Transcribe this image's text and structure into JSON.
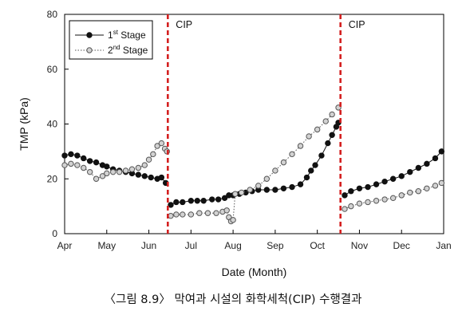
{
  "caption": "〈그림 8.9〉 막여과 시설의 화학세척(CIP) 수행결과",
  "chart_data": {
    "type": "scatter",
    "xlabel": "Date (Month)",
    "ylabel": "TMP (kPa)",
    "ylim": [
      0,
      80
    ],
    "yticks": [
      0,
      20,
      40,
      60,
      80
    ],
    "xlim": [
      "Apr",
      "Jan"
    ],
    "month_ticks": [
      "Apr",
      "May",
      "Jun",
      "Jul",
      "Aug",
      "Sep",
      "Oct",
      "Nov",
      "Dec",
      "Jan"
    ],
    "grid": false,
    "legend_position": "top-left",
    "events": [
      {
        "label": "CIP",
        "month": 6.45
      },
      {
        "label": "CIP",
        "month": 10.55
      }
    ],
    "event_color": "#d42020",
    "series": [
      {
        "legend_main": "1",
        "legend_sup": "st",
        "legend_suffix": " Stage",
        "style": "solid",
        "marker_fill": "#111111",
        "marker_stroke": "#111111",
        "points": [
          [
            4.0,
            28.5
          ],
          [
            4.15,
            29
          ],
          [
            4.3,
            28.5
          ],
          [
            4.45,
            27.5
          ],
          [
            4.6,
            26.5
          ],
          [
            4.75,
            26
          ],
          [
            4.9,
            25
          ],
          [
            5.0,
            24.5
          ],
          [
            5.15,
            23.5
          ],
          [
            5.3,
            23
          ],
          [
            5.45,
            22.5
          ],
          [
            5.6,
            22
          ],
          [
            5.75,
            21.5
          ],
          [
            5.9,
            21
          ],
          [
            6.05,
            20.5
          ],
          [
            6.2,
            20
          ],
          [
            6.3,
            20.5
          ],
          [
            6.4,
            18.5
          ],
          [
            6.52,
            10.5
          ],
          [
            6.65,
            11.5
          ],
          [
            6.8,
            11.5
          ],
          [
            7.0,
            12
          ],
          [
            7.15,
            12
          ],
          [
            7.3,
            12
          ],
          [
            7.5,
            12.5
          ],
          [
            7.65,
            12.5
          ],
          [
            7.8,
            13
          ],
          [
            7.9,
            14
          ],
          [
            8.0,
            14
          ],
          [
            8.15,
            14.5
          ],
          [
            8.3,
            15
          ],
          [
            8.45,
            15.5
          ],
          [
            8.6,
            16
          ],
          [
            8.8,
            16
          ],
          [
            9.0,
            16
          ],
          [
            9.2,
            16.5
          ],
          [
            9.4,
            17
          ],
          [
            9.6,
            18
          ],
          [
            9.75,
            20.5
          ],
          [
            9.85,
            23
          ],
          [
            9.95,
            25
          ],
          [
            10.1,
            28.5
          ],
          [
            10.25,
            33
          ],
          [
            10.35,
            36
          ],
          [
            10.45,
            39
          ],
          [
            10.5,
            40.5
          ],
          [
            10.65,
            14
          ],
          [
            10.8,
            15.5
          ],
          [
            11.0,
            16.5
          ],
          [
            11.2,
            17
          ],
          [
            11.4,
            18
          ],
          [
            11.6,
            19
          ],
          [
            11.8,
            20
          ],
          [
            12.0,
            21
          ],
          [
            12.2,
            22.5
          ],
          [
            12.4,
            24
          ],
          [
            12.6,
            25.5
          ],
          [
            12.8,
            27.5
          ],
          [
            12.95,
            30
          ]
        ]
      },
      {
        "legend_main": "2",
        "legend_sup": "nd",
        "legend_suffix": " Stage",
        "style": "dotted",
        "marker_fill": "#d2d2d2",
        "marker_stroke": "#555555",
        "points": [
          [
            4.0,
            25
          ],
          [
            4.15,
            25.5
          ],
          [
            4.3,
            25
          ],
          [
            4.45,
            24
          ],
          [
            4.6,
            22.5
          ],
          [
            4.75,
            20
          ],
          [
            4.9,
            21
          ],
          [
            5.0,
            22
          ],
          [
            5.15,
            22.5
          ],
          [
            5.3,
            22.5
          ],
          [
            5.45,
            23
          ],
          [
            5.6,
            23.5
          ],
          [
            5.75,
            24
          ],
          [
            5.9,
            25
          ],
          [
            6.0,
            27
          ],
          [
            6.1,
            29
          ],
          [
            6.2,
            32
          ],
          [
            6.3,
            33
          ],
          [
            6.38,
            31
          ],
          [
            6.43,
            30
          ],
          [
            6.52,
            6.5
          ],
          [
            6.65,
            7
          ],
          [
            6.8,
            7
          ],
          [
            7.0,
            7
          ],
          [
            7.2,
            7.5
          ],
          [
            7.4,
            7.5
          ],
          [
            7.6,
            7.5
          ],
          [
            7.75,
            8
          ],
          [
            7.85,
            8.5
          ],
          [
            7.9,
            6
          ],
          [
            7.95,
            4.5
          ],
          [
            8.0,
            5
          ],
          [
            8.05,
            14.5
          ],
          [
            8.2,
            15
          ],
          [
            8.4,
            16
          ],
          [
            8.6,
            17.5
          ],
          [
            8.8,
            20
          ],
          [
            9.0,
            23
          ],
          [
            9.2,
            26
          ],
          [
            9.4,
            29
          ],
          [
            9.6,
            32
          ],
          [
            9.8,
            35.5
          ],
          [
            10.0,
            38
          ],
          [
            10.2,
            41
          ],
          [
            10.35,
            43.5
          ],
          [
            10.5,
            46
          ],
          [
            10.65,
            9
          ],
          [
            10.8,
            10
          ],
          [
            11.0,
            11
          ],
          [
            11.2,
            11.5
          ],
          [
            11.4,
            12
          ],
          [
            11.6,
            12.5
          ],
          [
            11.8,
            13
          ],
          [
            12.0,
            14
          ],
          [
            12.2,
            15
          ],
          [
            12.4,
            15.5
          ],
          [
            12.6,
            16.5
          ],
          [
            12.8,
            17.5
          ],
          [
            12.95,
            18.5
          ]
        ]
      }
    ]
  }
}
